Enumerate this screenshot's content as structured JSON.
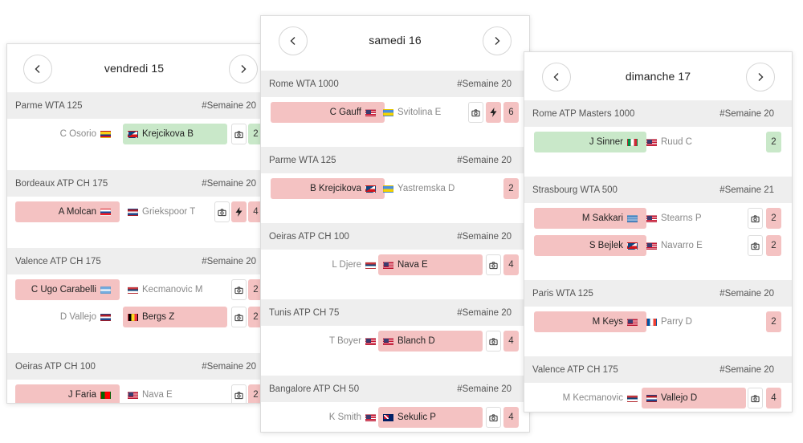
{
  "cards": [
    {
      "title": "vendredi 15",
      "tournaments": [
        {
          "name": "Parme WTA 125",
          "week": "#Semaine 20",
          "matches": [
            {
              "left": {
                "name": "C Osorio",
                "flag": "co",
                "style": "plain"
              },
              "right": {
                "name": "Krejcikova B",
                "flag": "cz",
                "style": "green",
                "flag_first": true
              },
              "bolt": false,
              "count": "2",
              "count_style": "green"
            }
          ]
        },
        {
          "name": "Bordeaux ATP CH 175",
          "week": "#Semaine 20",
          "matches": [
            {
              "left": {
                "name": "A Molcan",
                "flag": "sk",
                "style": "red"
              },
              "right": {
                "name": "Griekspoor T",
                "flag": "nl",
                "style": "plain",
                "flag_first": true
              },
              "bolt": true,
              "count": "4",
              "count_style": "red"
            }
          ]
        },
        {
          "name": "Valence ATP CH 175",
          "week": "#Semaine 20",
          "matches": [
            {
              "left": {
                "name": "C Ugo Carabelli",
                "flag": "ar",
                "style": "red"
              },
              "right": {
                "name": "Kecmanovic M",
                "flag": "rs",
                "style": "plain",
                "flag_first": true
              },
              "bolt": false,
              "count": "2",
              "count_style": "red"
            },
            {
              "left": {
                "name": "D Vallejo",
                "flag": "nl",
                "style": "plain"
              },
              "right": {
                "name": "Bergs Z",
                "flag": "be",
                "style": "red",
                "flag_first": true
              },
              "bolt": false,
              "count": "2",
              "count_style": "red"
            }
          ]
        },
        {
          "name": "Oeiras ATP CH 100",
          "week": "#Semaine 20",
          "matches": [
            {
              "left": {
                "name": "J Faria",
                "flag": "pt",
                "style": "red"
              },
              "right": {
                "name": "Nava E",
                "flag": "us",
                "style": "plain",
                "flag_first": true
              },
              "bolt": false,
              "count": "2",
              "count_style": "red"
            }
          ]
        }
      ]
    },
    {
      "title": "samedi 16",
      "tournaments": [
        {
          "name": "Rome WTA 1000",
          "week": "#Semaine 20",
          "matches": [
            {
              "left": {
                "name": "C Gauff",
                "flag": "us",
                "style": "red"
              },
              "right": {
                "name": "Svitolina E",
                "flag": "ua",
                "style": "plain",
                "flag_first": true
              },
              "bolt": true,
              "count": "6",
              "count_style": "red"
            }
          ]
        },
        {
          "name": "Parme WTA 125",
          "week": "#Semaine 20",
          "matches": [
            {
              "left": {
                "name": "B Krejcikova",
                "flag": "cz",
                "style": "red"
              },
              "right": {
                "name": "Yastremska D",
                "flag": "ua",
                "style": "plain",
                "flag_first": true
              },
              "bolt": false,
              "no_icon": true,
              "count": "2",
              "count_style": "red"
            }
          ]
        },
        {
          "name": "Oeiras ATP CH 100",
          "week": "#Semaine 20",
          "matches": [
            {
              "left": {
                "name": "L Djere",
                "flag": "rs",
                "style": "plain"
              },
              "right": {
                "name": "Nava E",
                "flag": "us",
                "style": "red",
                "flag_first": true
              },
              "bolt": false,
              "count": "4",
              "count_style": "red"
            }
          ]
        },
        {
          "name": "Tunis ATP CH 75",
          "week": "#Semaine 20",
          "matches": [
            {
              "left": {
                "name": "T Boyer",
                "flag": "us",
                "style": "plain"
              },
              "right": {
                "name": "Blanch D",
                "flag": "us",
                "style": "red",
                "flag_first": true
              },
              "bolt": false,
              "count": "4",
              "count_style": "red"
            }
          ]
        },
        {
          "name": "Bangalore ATP CH 50",
          "week": "#Semaine 20",
          "matches": [
            {
              "left": {
                "name": "K Smith",
                "flag": "us",
                "style": "plain"
              },
              "right": {
                "name": "Sekulic P",
                "flag": "au",
                "style": "red",
                "flag_first": true
              },
              "bolt": false,
              "count": "4",
              "count_style": "red"
            }
          ]
        }
      ]
    },
    {
      "title": "dimanche 17",
      "tournaments": [
        {
          "name": "Rome ATP Masters 1000",
          "week": "#Semaine 20",
          "matches": [
            {
              "left": {
                "name": "J Sinner",
                "flag": "it",
                "style": "green"
              },
              "right": {
                "name": "Ruud C",
                "flag": "us",
                "style": "plain",
                "flag_first": true
              },
              "bolt": false,
              "no_icon": true,
              "count": "2",
              "count_style": "green"
            }
          ]
        },
        {
          "name": "Strasbourg WTA 500",
          "week": "#Semaine 21",
          "matches": [
            {
              "left": {
                "name": "M Sakkari",
                "flag": "gr",
                "style": "red"
              },
              "right": {
                "name": "Stearns P",
                "flag": "us",
                "style": "plain",
                "flag_first": true
              },
              "bolt": false,
              "count": "2",
              "count_style": "red"
            },
            {
              "left": {
                "name": "S Bejlek",
                "flag": "cz",
                "style": "red"
              },
              "right": {
                "name": "Navarro E",
                "flag": "us",
                "style": "plain",
                "flag_first": true
              },
              "bolt": false,
              "count": "2",
              "count_style": "red"
            }
          ]
        },
        {
          "name": "Paris WTA 125",
          "week": "#Semaine 20",
          "matches": [
            {
              "left": {
                "name": "M Keys",
                "flag": "us",
                "style": "red"
              },
              "right": {
                "name": "Parry D",
                "flag": "fr",
                "style": "plain",
                "flag_first": true
              },
              "bolt": false,
              "no_icon": true,
              "count": "2",
              "count_style": "red"
            }
          ]
        },
        {
          "name": "Valence ATP CH 175",
          "week": "#Semaine 20",
          "matches": [
            {
              "left": {
                "name": "M Kecmanovic",
                "flag": "rs",
                "style": "plain"
              },
              "right": {
                "name": "Vallejo D",
                "flag": "nl",
                "style": "red",
                "flag_first": true
              },
              "bolt": false,
              "count": "4",
              "count_style": "red"
            }
          ]
        }
      ]
    }
  ]
}
